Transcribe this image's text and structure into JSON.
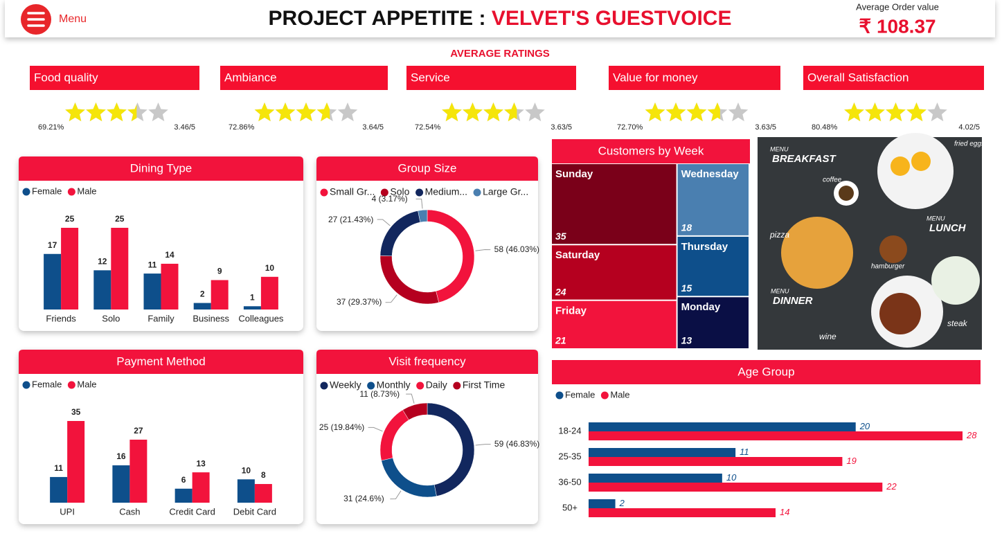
{
  "header": {
    "menu": "Menu",
    "title": "PROJECT APPETITE :",
    "subtitle": "VELVET'S GUESTVOICE",
    "aov_label": "Average Order value",
    "aov_value": "₹ 108.37"
  },
  "ratings": {
    "title": "AVERAGE RATINGS",
    "max": 5,
    "items": [
      {
        "name": "Food quality",
        "percent": "69.21%",
        "rating": 3.46,
        "rating_label": "3.46/5"
      },
      {
        "name": "Ambiance",
        "percent": "72.86%",
        "rating": 3.64,
        "rating_label": "3.64/5"
      },
      {
        "name": "Service",
        "percent": "72.54%",
        "rating": 3.63,
        "rating_label": "3.63/5"
      },
      {
        "name": "Value for money",
        "percent": "72.70%",
        "rating": 3.63,
        "rating_label": "3.63/5"
      },
      {
        "name": "Overall Satisfaction",
        "percent": "80.48%",
        "rating": 4.02,
        "rating_label": "4.02/5"
      }
    ]
  },
  "chart_data": [
    {
      "type": "bar",
      "title": "Dining Type",
      "categories": [
        "Friends",
        "Solo",
        "Family",
        "Business",
        "Colleagues"
      ],
      "series": [
        {
          "name": "Female",
          "color": "#0e4f8b",
          "values": [
            17,
            12,
            11,
            2,
            1
          ]
        },
        {
          "name": "Male",
          "color": "#f2133c",
          "values": [
            25,
            25,
            14,
            9,
            10
          ]
        }
      ]
    },
    {
      "type": "donut",
      "title": "Group Size",
      "categories": [
        "Small Gr...",
        "Solo",
        "Medium...",
        "Large Gr..."
      ],
      "values": [
        58,
        37,
        27,
        4
      ],
      "value_labels": [
        "58 (46.03%)",
        "37 (29.37%)",
        "27 (21.43%)",
        "4 (3.17%)"
      ],
      "colors": [
        "#f2133c",
        "#b5001f",
        "#12275e",
        "#4a7fb0"
      ]
    },
    {
      "type": "bar",
      "title": "Payment Method",
      "categories": [
        "UPI",
        "Cash",
        "Credit Card",
        "Debit Card"
      ],
      "series": [
        {
          "name": "Female",
          "color": "#0e4f8b",
          "values": [
            11,
            16,
            6,
            10
          ]
        },
        {
          "name": "Male",
          "color": "#f2133c",
          "values": [
            35,
            27,
            13,
            8
          ]
        }
      ]
    },
    {
      "type": "donut",
      "title": "Visit frequency",
      "categories": [
        "Weekly",
        "Monthly",
        "Daily",
        "First Time"
      ],
      "values": [
        59,
        31,
        25,
        11
      ],
      "value_labels": [
        "59 (46.83%)",
        "31 (24.6%)",
        "25 (19.84%)",
        "11 (8.73%)"
      ],
      "colors": [
        "#12275e",
        "#0e4f8b",
        "#f2133c",
        "#b5001f"
      ]
    },
    {
      "type": "treemap",
      "title": "Customers by Week",
      "categories": [
        "Sunday",
        "Saturday",
        "Friday",
        "Wednesday",
        "Thursday",
        "Monday"
      ],
      "values": [
        35,
        24,
        21,
        18,
        15,
        13
      ],
      "colors": [
        "#7a0019",
        "#b5001f",
        "#f2133c",
        "#4a7fb0",
        "#0e4f8b",
        "#0a0f45"
      ]
    },
    {
      "type": "hbar",
      "title": "Age Group",
      "categories": [
        "18-24",
        "25-35",
        "36-50",
        "50+"
      ],
      "series": [
        {
          "name": "Female",
          "color": "#0e4f8b",
          "values": [
            20,
            11,
            10,
            2
          ]
        },
        {
          "name": "Male",
          "color": "#f2133c",
          "values": [
            28,
            19,
            22,
            14
          ]
        }
      ]
    }
  ],
  "menu_image": {
    "labels": [
      "MENU",
      "BREAKFAST",
      "coffee",
      "fried eggs",
      "pizza",
      "MENU",
      "LUNCH",
      "hamburger",
      "MENU",
      "DINNER",
      "wine",
      "steak"
    ]
  }
}
